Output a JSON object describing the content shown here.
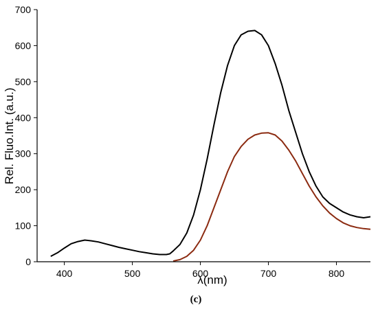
{
  "chart_data": {
    "type": "line",
    "title": "",
    "xlabel": "λ(nm)",
    "ylabel": "Rel. Fluo.Int. (a.u.)",
    "caption": "(c)",
    "xlim": [
      360,
      850
    ],
    "ylim": [
      0,
      700
    ],
    "x_ticks": [
      400,
      500,
      600,
      700,
      800
    ],
    "y_ticks": [
      0,
      100,
      200,
      300,
      400,
      500,
      600,
      700
    ],
    "x_tick_labels": [
      "400",
      "500",
      "600",
      "700",
      "800"
    ],
    "y_tick_labels": [
      "0",
      "100",
      "200",
      "300",
      "400",
      "500",
      "600",
      "700"
    ],
    "grid": false,
    "series": [
      {
        "color": "#000000",
        "x": [
          380,
          390,
          400,
          410,
          420,
          430,
          440,
          450,
          460,
          470,
          480,
          490,
          500,
          510,
          520,
          530,
          540,
          550,
          555,
          560,
          570,
          580,
          590,
          600,
          610,
          620,
          630,
          640,
          650,
          660,
          670,
          680,
          690,
          700,
          710,
          720,
          730,
          740,
          750,
          760,
          770,
          780,
          790,
          800,
          810,
          820,
          830,
          840,
          850
        ],
        "y": [
          15,
          25,
          38,
          50,
          56,
          60,
          58,
          55,
          50,
          45,
          40,
          36,
          32,
          28,
          25,
          22,
          20,
          20,
          22,
          30,
          48,
          80,
          130,
          200,
          285,
          380,
          470,
          545,
          600,
          630,
          640,
          642,
          630,
          600,
          550,
          490,
          420,
          360,
          300,
          250,
          210,
          180,
          162,
          150,
          138,
          130,
          125,
          122,
          125
        ]
      },
      {
        "color": "#8b2a10",
        "x": [
          560,
          570,
          580,
          590,
          600,
          610,
          620,
          630,
          640,
          650,
          660,
          670,
          680,
          690,
          700,
          710,
          720,
          730,
          740,
          750,
          760,
          770,
          780,
          790,
          800,
          810,
          820,
          830,
          840,
          850
        ],
        "y": [
          2,
          6,
          15,
          32,
          60,
          100,
          150,
          200,
          250,
          292,
          320,
          340,
          352,
          357,
          358,
          352,
          335,
          310,
          280,
          245,
          210,
          180,
          155,
          135,
          120,
          108,
          100,
          95,
          92,
          90
        ]
      }
    ]
  }
}
